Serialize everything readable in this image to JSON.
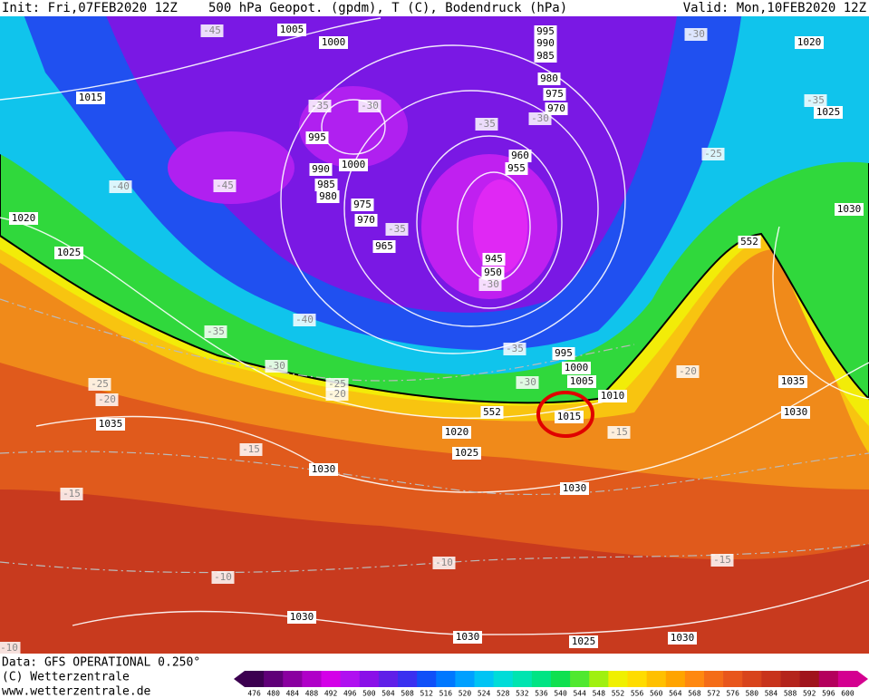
{
  "header": {
    "init": "Init: Fri,07FEB2020 12Z",
    "title": "500 hPa Geopot. (gpdm), T (C), Bodendruck (hPa)",
    "valid": "Valid: Mon,10FEB2020 12Z"
  },
  "footer": {
    "data": "Data: GFS OPERATIONAL 0.250°",
    "copyright": "(C) Wetterzentrale",
    "url": "www.wetterzentrale.de"
  },
  "legend": {
    "labels": [
      "476",
      "480",
      "484",
      "488",
      "492",
      "496",
      "500",
      "504",
      "508",
      "512",
      "516",
      "520",
      "524",
      "528",
      "532",
      "536",
      "540",
      "544",
      "548",
      "552",
      "556",
      "560",
      "564",
      "568",
      "572",
      "576",
      "580",
      "584",
      "588",
      "592",
      "596",
      "600"
    ],
    "colors": [
      "#3c0050",
      "#600078",
      "#8a00a0",
      "#b000c8",
      "#d400e8",
      "#b010f0",
      "#8a10e8",
      "#6020e8",
      "#3a30f0",
      "#1050f8",
      "#0078ff",
      "#00a0ff",
      "#00c4f4",
      "#00dcd8",
      "#00e4b0",
      "#00e484",
      "#10e050",
      "#50e830",
      "#a0f010",
      "#f0f000",
      "#ffdc00",
      "#ffc000",
      "#ffa400",
      "#ff8810",
      "#f46c18",
      "#e8561c",
      "#d8441c",
      "#c8341c",
      "#b4241c",
      "#a0141c",
      "#b4005c",
      "#d40090"
    ]
  },
  "map_labels": {
    "pressure": [
      "1005",
      "1000",
      "995",
      "990",
      "985",
      "1020",
      "1015",
      "980",
      "975",
      "970",
      "995",
      "1025",
      "1000",
      "990",
      "960",
      "955",
      "985",
      "980",
      "975",
      "970",
      "1020",
      "1030",
      "965",
      "552",
      "1025",
      "945",
      "950",
      "995",
      "1000",
      "1005",
      "1010",
      "552",
      "1015",
      "1035",
      "1030",
      "1035",
      "1020",
      "1025",
      "1030",
      "1030",
      "1030",
      "1030",
      "1025",
      "1030"
    ],
    "temperature": [
      "-45",
      "-30",
      "-35",
      "-30",
      "-35",
      "-35",
      "-30",
      "-25",
      "-40",
      "-45",
      "-35",
      "-30",
      "-40",
      "-35",
      "-35",
      "-30",
      "-20",
      "-25",
      "-20",
      "-30",
      "-25",
      "-20",
      "-15",
      "-15",
      "-15",
      "-10",
      "-10",
      "-15",
      "-10"
    ]
  }
}
